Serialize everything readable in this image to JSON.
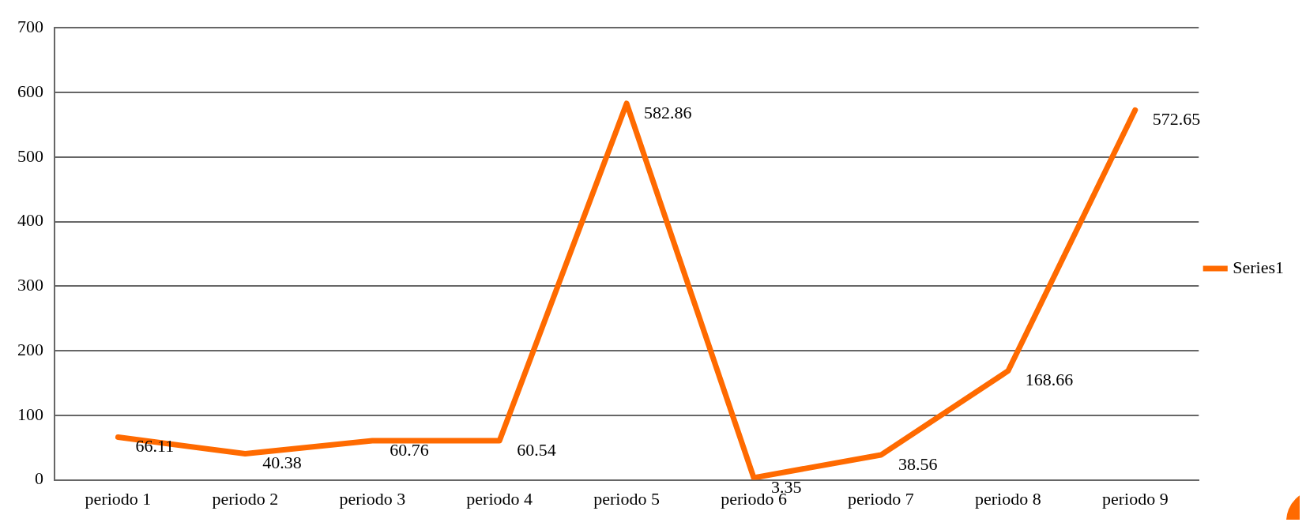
{
  "chart_data": {
    "type": "line",
    "categories": [
      "periodo 1",
      "periodo 2",
      "periodo 3",
      "periodo 4",
      "periodo 5",
      "periodo 6",
      "periodo 7",
      "periodo 8",
      "periodo 9"
    ],
    "series": [
      {
        "name": "Series1",
        "color": "#ff6a00",
        "values": [
          66.11,
          40.38,
          60.76,
          60.54,
          582.86,
          3.35,
          38.56,
          168.66,
          572.65
        ]
      }
    ],
    "ylim": [
      0,
      700
    ],
    "yticks": [
      0,
      100,
      200,
      300,
      400,
      500,
      600,
      700
    ],
    "grid": "y",
    "legend": "right",
    "data_labels": true,
    "marker": "none",
    "line_style": "solid"
  }
}
